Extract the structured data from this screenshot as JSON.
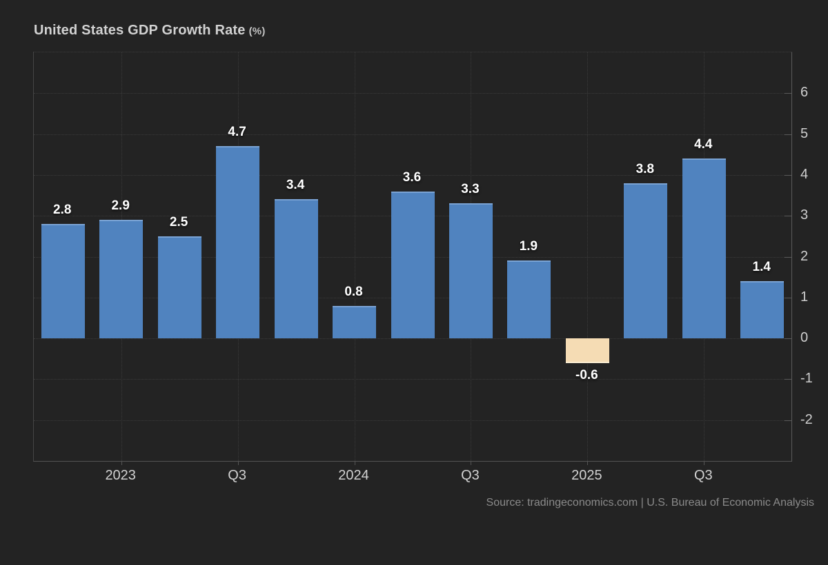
{
  "title": {
    "text": "United States GDP Growth Rate",
    "unit": "(%)"
  },
  "source": "Source: tradingeconomics.com | U.S. Bureau of Economic Analysis",
  "colors": {
    "background": "#232323",
    "bar_positive": "#5083bf",
    "bar_negative": "#f5dcb4",
    "gridline": "#3b3b3b",
    "axis_line": "#555555",
    "value_label": "#ffffff",
    "tick_label": "#cfcfcf",
    "title_text": "#d2d2d2",
    "source_text": "#8b8b8b"
  },
  "chart_data": {
    "type": "bar",
    "title": "United States GDP Growth Rate (%)",
    "xlabel": "",
    "ylabel": "",
    "values": [
      2.8,
      2.9,
      2.5,
      4.7,
      3.4,
      0.8,
      3.6,
      3.3,
      1.9,
      -0.6,
      3.8,
      4.4,
      1.4
    ],
    "bar_value_labels": [
      "2.8",
      "2.9",
      "2.5",
      "4.7",
      "3.4",
      "0.8",
      "3.6",
      "3.3",
      "1.9",
      "-0.6",
      "3.8",
      "4.4",
      "1.4"
    ],
    "x_tick_labels": [
      {
        "bar_index": 1,
        "label": "2023"
      },
      {
        "bar_index": 3,
        "label": "Q3"
      },
      {
        "bar_index": 5,
        "label": "2024"
      },
      {
        "bar_index": 7,
        "label": "Q3"
      },
      {
        "bar_index": 9,
        "label": "2025"
      },
      {
        "bar_index": 11,
        "label": "Q3"
      }
    ],
    "y_tick_labels": [
      6,
      5,
      4,
      3,
      2,
      1,
      0,
      -1,
      -2
    ],
    "ylim": [
      -3,
      7
    ],
    "grid": true,
    "grid_style": "dotted",
    "legend": false,
    "negative_bar_color_differs": true
  }
}
